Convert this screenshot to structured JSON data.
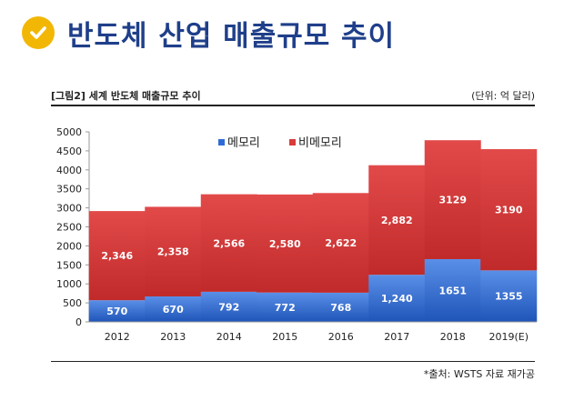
{
  "header": {
    "title": "반도체 산업 매출규모 추이",
    "icon": "check-icon",
    "title_color": "#1f3f8a",
    "icon_color": "#f2b705"
  },
  "figure": {
    "caption": "[그림2] 세계 반도체 매출규모 추이",
    "unit": "(단위: 억 달러)",
    "source": "*출처: WSTS 자료 재가공"
  },
  "chart_data": {
    "type": "bar",
    "stacked": true,
    "categories": [
      "2012",
      "2013",
      "2014",
      "2015",
      "2016",
      "2017",
      "2018",
      "2019(E)"
    ],
    "series": [
      {
        "name": "메모리",
        "color": "#2f6bd6",
        "values": [
          570,
          670,
          792,
          772,
          768,
          1240,
          1651,
          1355
        ],
        "labels": [
          "570",
          "670",
          "792",
          "772",
          "768",
          "1,240",
          "1651",
          "1355"
        ]
      },
      {
        "name": "비메모리",
        "color": "#d93a3a",
        "values": [
          2346,
          2358,
          2566,
          2580,
          2622,
          2882,
          3129,
          3190
        ],
        "labels": [
          "2,346",
          "2,358",
          "2,566",
          "2,580",
          "2,622",
          "2,882",
          "3129",
          "3190"
        ]
      }
    ],
    "y_ticks": [
      "0",
      "500",
      "1000",
      "1500",
      "2000",
      "2500",
      "3000",
      "3500",
      "4000",
      "4500",
      "5000"
    ],
    "ylim": [
      0,
      5000
    ],
    "legend_position": "top-center"
  }
}
